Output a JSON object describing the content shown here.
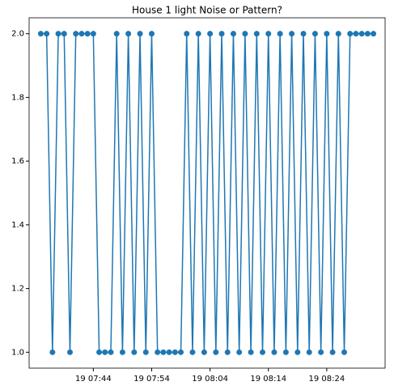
{
  "chart_data": {
    "type": "line",
    "title": "House 1 light Noise or Pattern?",
    "x": [
      "19 07:35",
      "19 07:36",
      "19 07:37",
      "19 07:38",
      "19 07:39",
      "19 07:40",
      "19 07:41",
      "19 07:42",
      "19 07:43",
      "19 07:44",
      "19 07:45",
      "19 07:46",
      "19 07:47",
      "19 07:48",
      "19 07:49",
      "19 07:50",
      "19 07:51",
      "19 07:52",
      "19 07:53",
      "19 07:54",
      "19 07:55",
      "19 07:56",
      "19 07:57",
      "19 07:58",
      "19 07:59",
      "19 08:00",
      "19 08:01",
      "19 08:02",
      "19 08:03",
      "19 08:04",
      "19 08:05",
      "19 08:06",
      "19 08:07",
      "19 08:08",
      "19 08:09",
      "19 08:10",
      "19 08:11",
      "19 08:12",
      "19 08:13",
      "19 08:14",
      "19 08:15",
      "19 08:16",
      "19 08:17",
      "19 08:18",
      "19 08:19",
      "19 08:20",
      "19 08:21",
      "19 08:22",
      "19 08:23",
      "19 08:24",
      "19 08:25",
      "19 08:26",
      "19 08:27",
      "19 08:28",
      "19 08:29",
      "19 08:30",
      "19 08:31",
      "19 08:32"
    ],
    "values": [
      2,
      2,
      1,
      2,
      2,
      1,
      2,
      2,
      2,
      2,
      1,
      1,
      1,
      2,
      1,
      2,
      1,
      2,
      1,
      2,
      1,
      1,
      1,
      1,
      1,
      2,
      1,
      2,
      1,
      2,
      1,
      2,
      1,
      2,
      1,
      2,
      1,
      2,
      1,
      2,
      1,
      2,
      1,
      2,
      1,
      2,
      1,
      2,
      1,
      2,
      1,
      2,
      1,
      2,
      2,
      2,
      2,
      2
    ],
    "color": "#1f77b4",
    "xlim": [
      "19 07:33",
      "19 08:34"
    ],
    "xticks": [
      "19 07:44",
      "19 07:54",
      "19 08:04",
      "19 08:14",
      "19 08:24"
    ],
    "ylim": [
      0.95,
      2.05
    ],
    "yticks": [
      {
        "value": 1,
        "label": "1.0"
      },
      1.2,
      1.4,
      1.6,
      1.8,
      {
        "value": 2,
        "label": "2.0"
      }
    ]
  }
}
